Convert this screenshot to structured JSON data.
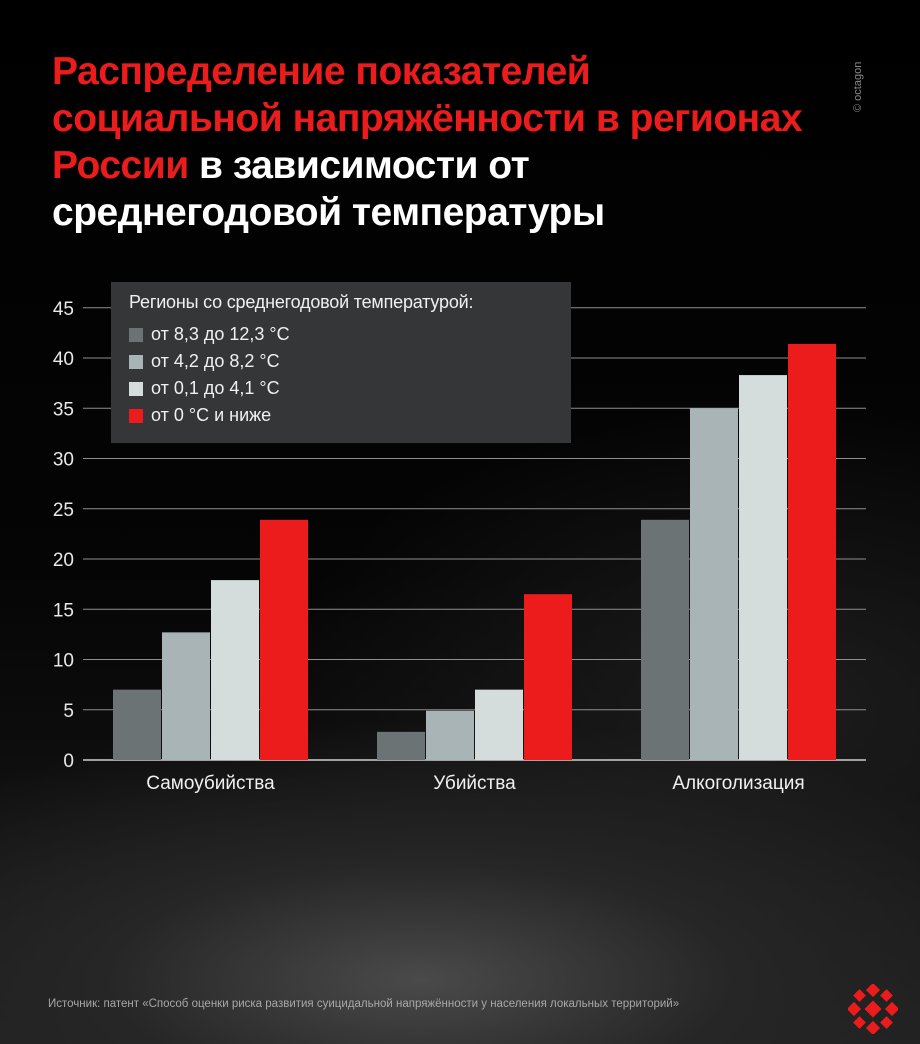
{
  "title": {
    "red_part": "Распределение показателей социальной напряжённости в регионах России",
    "white_part": "в зависимости от среднегодовой температуры"
  },
  "copyright": "© octagon",
  "source": "Источник: патент «Способ оценки риска развития суицидальной напряжённости у населения локальных территорий»",
  "chart_data": {
    "type": "bar",
    "title": "Распределение показателей социальной напряжённости в регионах России в зависимости от среднегодовой температуры",
    "categories": [
      "Самоубийства",
      "Убийства",
      "Алкоголизация"
    ],
    "yticks": [
      0,
      5,
      10,
      15,
      20,
      25,
      30,
      35,
      40,
      45
    ],
    "ylim": [
      0,
      45
    ],
    "grid": true,
    "legend_title": "Регионы со среднегодовой температурой:",
    "legend_position": "top-left",
    "series": [
      {
        "name": "от 8,3 до 12,3 °С",
        "color": "#6b7375",
        "values": [
          7,
          2.8,
          23.9
        ]
      },
      {
        "name": "от 4,2 до 8,2 °С",
        "color": "#a8b4b6",
        "values": [
          12.7,
          4.9,
          35
        ]
      },
      {
        "name": "от 0,1 до 4,1 °С",
        "color": "#d4dcdc",
        "values": [
          17.9,
          7,
          38.3
        ]
      },
      {
        "name": "от 0 °С и ниже",
        "color": "#ed1c1c",
        "values": [
          23.9,
          16.5,
          41.4
        ]
      }
    ]
  }
}
